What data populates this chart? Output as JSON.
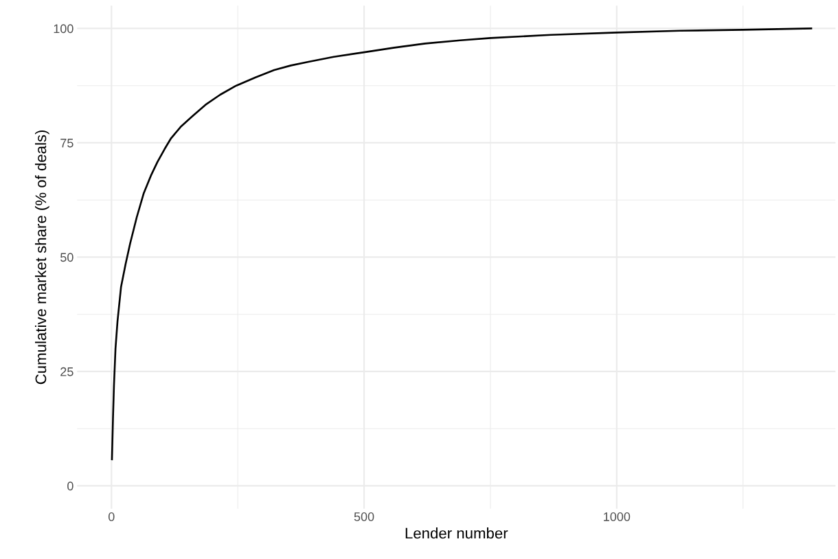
{
  "chart_data": {
    "type": "line",
    "xlabel": "Lender number",
    "ylabel": "Cumulative market share (% of deals)",
    "x": [
      1,
      3,
      5,
      8,
      12,
      19,
      28,
      37,
      50,
      64,
      78,
      91,
      105,
      118,
      138,
      159,
      186,
      215,
      247,
      285,
      322,
      355,
      390,
      440,
      500,
      560,
      621,
      690,
      750,
      870,
      1000,
      1125,
      1250,
      1385
    ],
    "series": [
      {
        "color": "#000000",
        "values": [
          5.8,
          14.6,
          22,
          30,
          36,
          43.5,
          48.5,
          53,
          58.7,
          64,
          67.8,
          70.8,
          73.6,
          76,
          78.6,
          80.7,
          83.3,
          85.5,
          87.5,
          89.3,
          90.9,
          91.9,
          92.7,
          93.8,
          94.8,
          95.8,
          96.7,
          97.4,
          97.9,
          98.6,
          99.1,
          99.5,
          99.7,
          100
        ]
      }
    ],
    "xlim": [
      -68,
      1433
    ],
    "ylim": [
      -5,
      105
    ],
    "xticks": [
      0,
      {
        "value": 250,
        "label": null
      },
      500,
      {
        "value": 750,
        "label": null
      },
      1000,
      {
        "value": 1250,
        "label": null
      }
    ],
    "yticks": [
      0,
      {
        "value": 12.5,
        "label": null
      },
      25,
      {
        "value": 37.5,
        "label": null
      },
      50,
      {
        "value": 62.5,
        "label": null
      },
      75,
      {
        "value": 87.5,
        "label": null
      },
      100
    ],
    "grid": true,
    "line_style": "solid",
    "marker": "none",
    "legend": false
  }
}
